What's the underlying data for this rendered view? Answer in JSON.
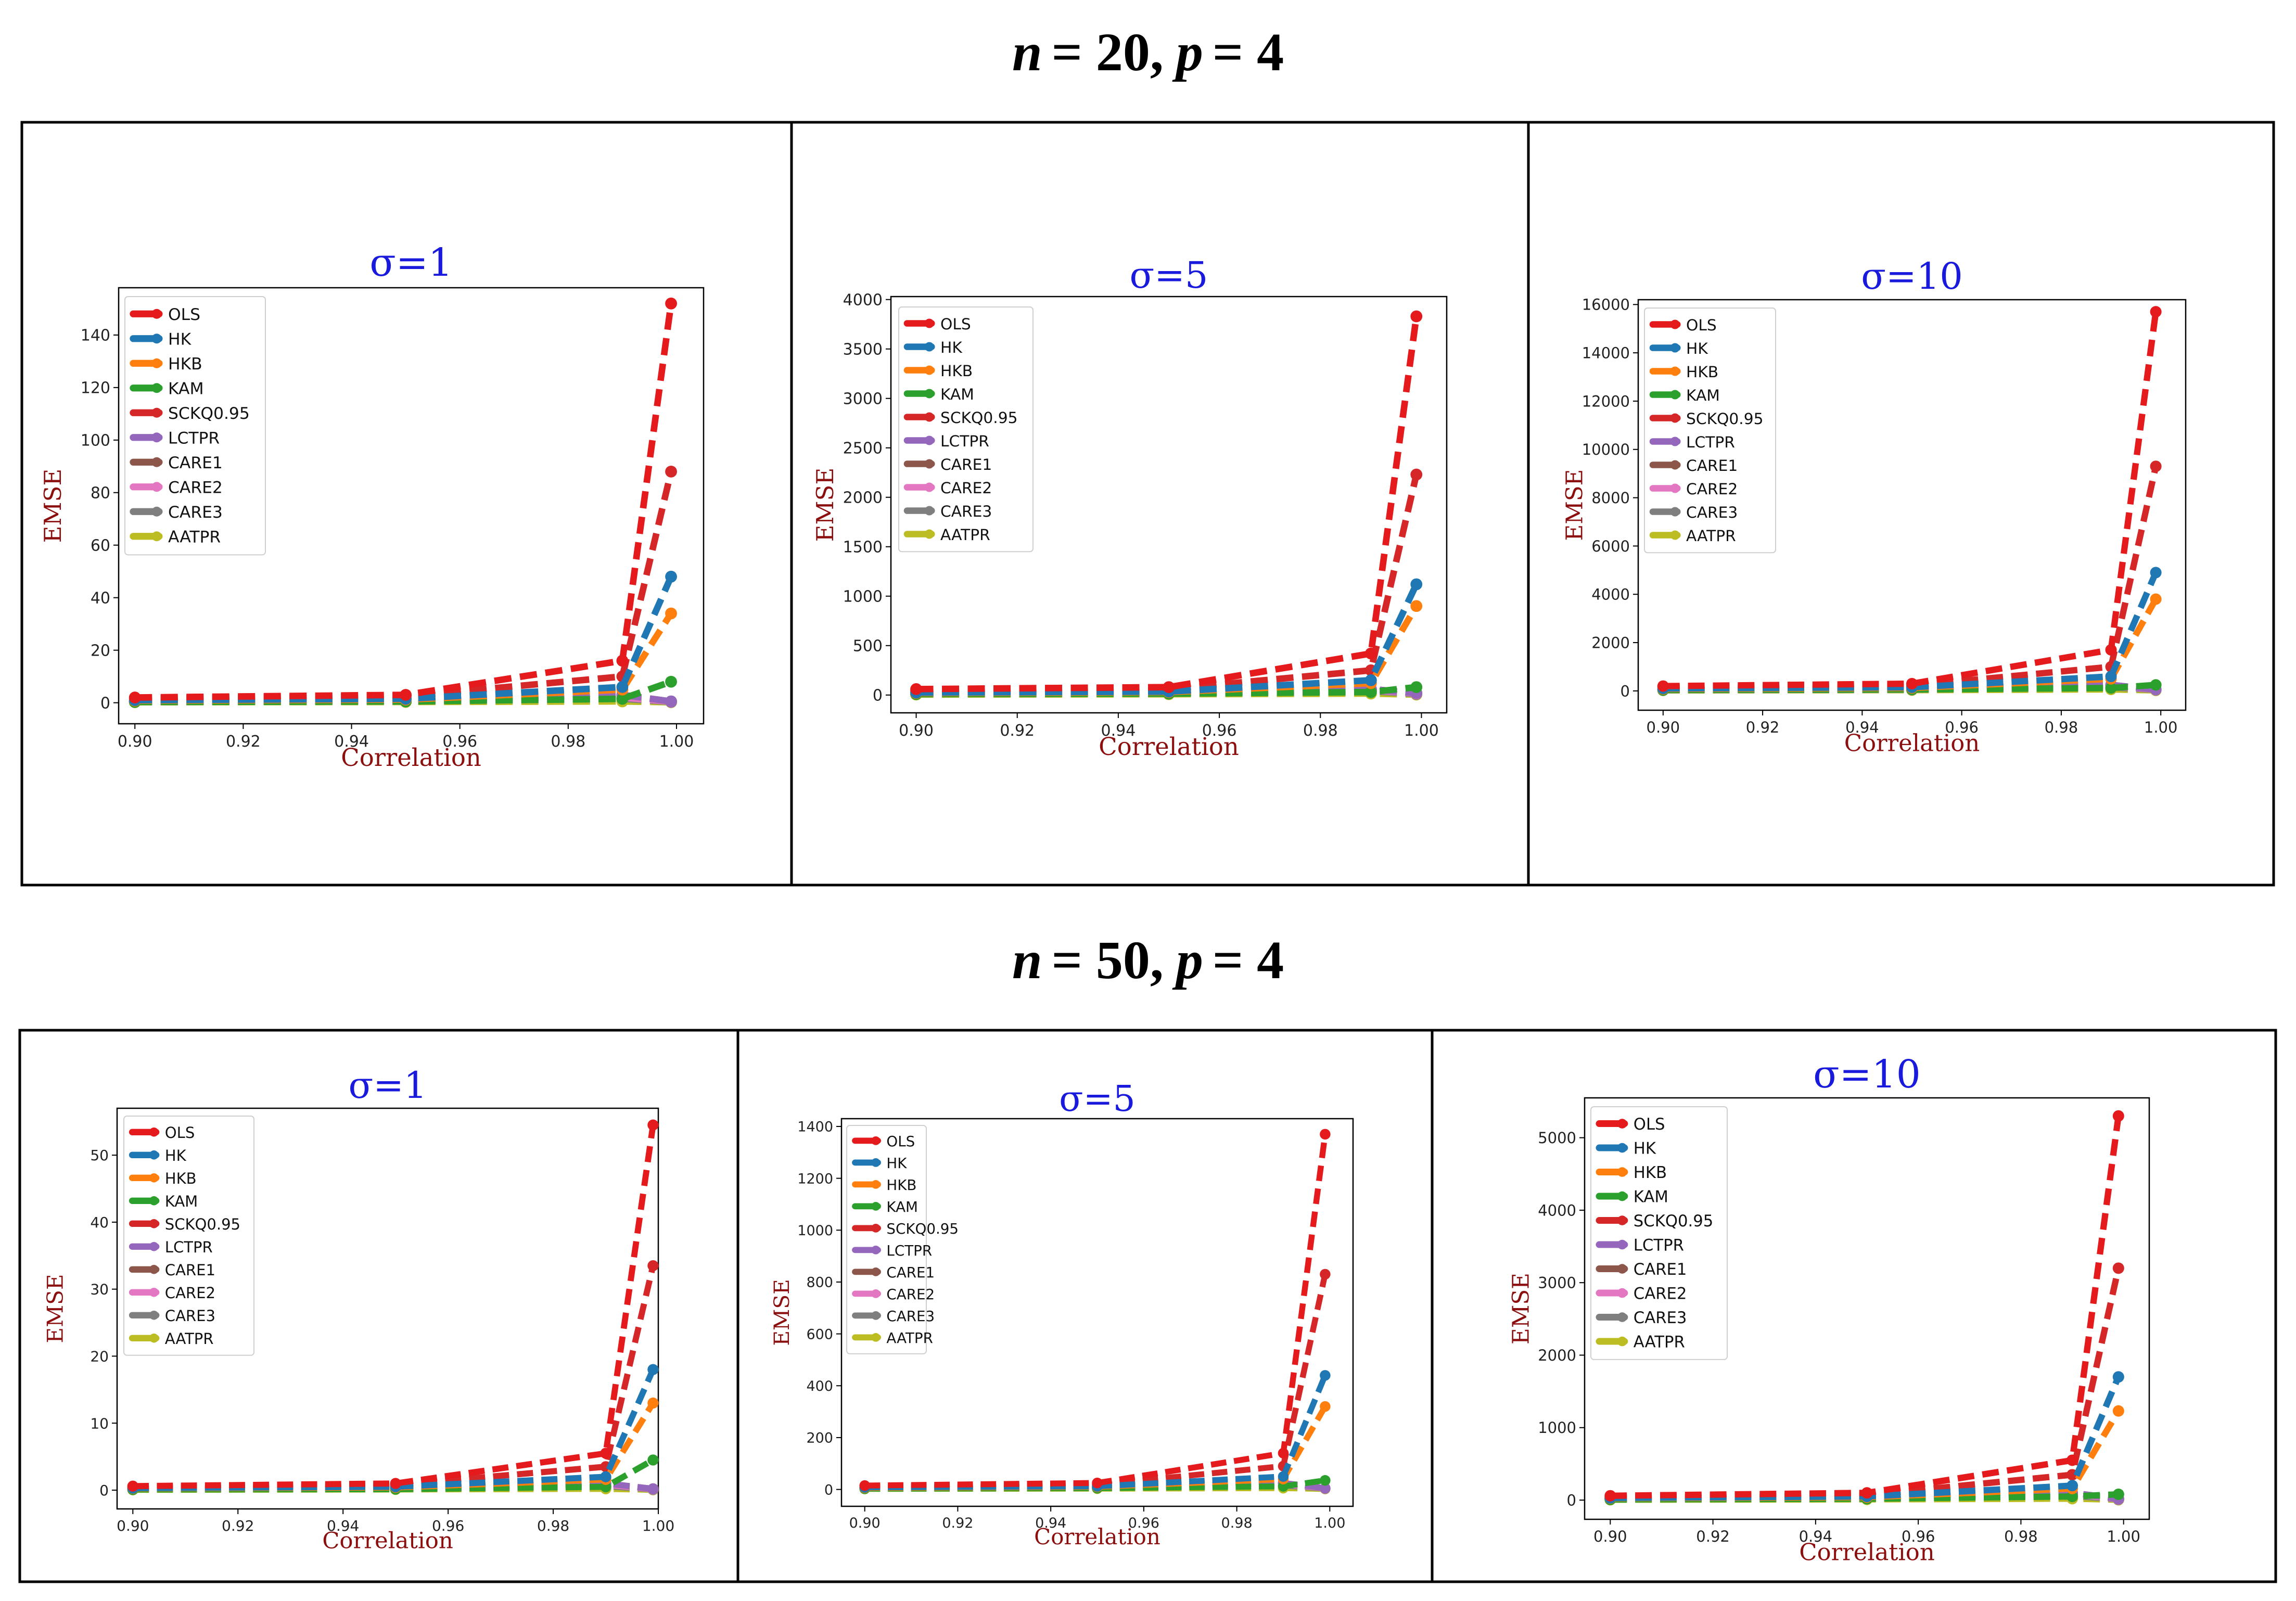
{
  "headings": [
    {
      "n_sym": "n",
      "n_val": "= 20,",
      "p_sym": "p",
      "p_val": "= 4"
    },
    {
      "n_sym": "n",
      "n_val": "= 50,",
      "p_sym": "p",
      "p_val": "= 4"
    }
  ],
  "colors": {
    "title": "#1a1adc",
    "axis_label": "#8b0f0f",
    "frame": "#000000",
    "OLS": "#e41a1c",
    "HK": "#1f77b4",
    "HKB": "#ff7f0e",
    "KAM": "#2ca02c",
    "SCKQ0.95": "#d62728",
    "LCTPR": "#9467bd",
    "CARE1": "#8c564b",
    "CARE2": "#e377c2",
    "CARE3": "#7f7f7f",
    "AATPR": "#bcbd22"
  },
  "legend": [
    "OLS",
    "HK",
    "HKB",
    "KAM",
    "SCKQ0.95",
    "LCTPR",
    "CARE1",
    "CARE2",
    "CARE3",
    "AATPR"
  ],
  "chart_data": [
    {
      "type": "line",
      "title": "σ=1",
      "xlabel": "Correlation",
      "ylabel": "EMSE",
      "x": [
        0.9,
        0.95,
        0.99,
        0.999
      ],
      "xticks": [
        "0.90",
        "0.92",
        "0.94",
        "0.96",
        "0.98",
        "1.00"
      ],
      "xlim": [
        0.897,
        1.005
      ],
      "ylim": [
        -8,
        158
      ],
      "yticks": [
        "0",
        "20",
        "40",
        "60",
        "80",
        "100",
        "120",
        "140"
      ],
      "series": [
        {
          "name": "OLS",
          "values": [
            2,
            3,
            16,
            152
          ]
        },
        {
          "name": "HK",
          "values": [
            1,
            1.5,
            6,
            48
          ]
        },
        {
          "name": "HKB",
          "values": [
            0.8,
            1.2,
            5,
            34
          ]
        },
        {
          "name": "KAM",
          "values": [
            0.3,
            0.5,
            1.5,
            8
          ]
        },
        {
          "name": "SCKQ0.95",
          "values": [
            1.5,
            2.5,
            10,
            88
          ]
        },
        {
          "name": "LCTPR",
          "values": [
            0.5,
            0.8,
            3,
            0.5
          ]
        },
        {
          "name": "CARE1",
          "values": [
            0.5,
            0.8,
            3,
            0.5
          ]
        },
        {
          "name": "CARE2",
          "values": [
            0.4,
            0.6,
            2,
            0.4
          ]
        },
        {
          "name": "CARE3",
          "values": [
            0.3,
            0.5,
            1.5,
            0.3
          ]
        },
        {
          "name": "AATPR",
          "values": [
            0.2,
            0.3,
            0.5,
            0.2
          ]
        }
      ]
    },
    {
      "type": "line",
      "title": "σ=5",
      "xlabel": "Correlation",
      "ylabel": "EMSE",
      "x": [
        0.9,
        0.95,
        0.99,
        0.999
      ],
      "xticks": [
        "0.90",
        "0.92",
        "0.94",
        "0.96",
        "0.98",
        "1.00"
      ],
      "xlim": [
        0.895,
        1.005
      ],
      "ylim": [
        -180,
        4030
      ],
      "yticks": [
        "0",
        "500",
        "1000",
        "1500",
        "2000",
        "2500",
        "3000",
        "3500",
        "4000"
      ],
      "series": [
        {
          "name": "OLS",
          "values": [
            60,
            80,
            420,
            3830
          ]
        },
        {
          "name": "HK",
          "values": [
            25,
            35,
            150,
            1120
          ]
        },
        {
          "name": "HKB",
          "values": [
            20,
            30,
            120,
            900
          ]
        },
        {
          "name": "KAM",
          "values": [
            10,
            15,
            30,
            80
          ]
        },
        {
          "name": "SCKQ0.95",
          "values": [
            40,
            60,
            250,
            2230
          ]
        },
        {
          "name": "LCTPR",
          "values": [
            15,
            20,
            60,
            20
          ]
        },
        {
          "name": "CARE1",
          "values": [
            15,
            20,
            60,
            20
          ]
        },
        {
          "name": "CARE2",
          "values": [
            12,
            18,
            50,
            15
          ]
        },
        {
          "name": "CARE3",
          "values": [
            10,
            15,
            40,
            10
          ]
        },
        {
          "name": "AATPR",
          "values": [
            5,
            8,
            15,
            5
          ]
        }
      ]
    },
    {
      "type": "line",
      "title": "σ=10",
      "xlabel": "Correlation",
      "ylabel": "EMSE",
      "x": [
        0.9,
        0.95,
        0.99,
        0.999
      ],
      "xticks": [
        "0.90",
        "0.92",
        "0.94",
        "0.96",
        "0.98",
        "1.00"
      ],
      "xlim": [
        0.895,
        1.005
      ],
      "ylim": [
        -800,
        16200
      ],
      "yticks": [
        "0",
        "2000",
        "4000",
        "6000",
        "8000",
        "10000",
        "12000",
        "14000",
        "16000"
      ],
      "series": [
        {
          "name": "OLS",
          "values": [
            200,
            300,
            1700,
            15700
          ]
        },
        {
          "name": "HK",
          "values": [
            100,
            150,
            600,
            4900
          ]
        },
        {
          "name": "HKB",
          "values": [
            80,
            120,
            500,
            3800
          ]
        },
        {
          "name": "KAM",
          "values": [
            40,
            60,
            120,
            250
          ]
        },
        {
          "name": "SCKQ0.95",
          "values": [
            150,
            220,
            1000,
            9300
          ]
        },
        {
          "name": "LCTPR",
          "values": [
            50,
            80,
            250,
            60
          ]
        },
        {
          "name": "CARE1",
          "values": [
            50,
            80,
            250,
            60
          ]
        },
        {
          "name": "CARE2",
          "values": [
            40,
            60,
            200,
            50
          ]
        },
        {
          "name": "CARE3",
          "values": [
            30,
            50,
            150,
            40
          ]
        },
        {
          "name": "AATPR",
          "values": [
            20,
            30,
            60,
            20
          ]
        }
      ]
    },
    {
      "type": "line",
      "title": "σ=1",
      "xlabel": "Correlation",
      "ylabel": "EMSE",
      "x": [
        0.9,
        0.95,
        0.99,
        0.999
      ],
      "xticks": [
        "0.90",
        "0.92",
        "0.94",
        "0.96",
        "0.98",
        "1.00"
      ],
      "xlim": [
        0.897,
        1.0
      ],
      "ylim": [
        -2.8,
        57
      ],
      "yticks": [
        "0",
        "10",
        "20",
        "30",
        "40",
        "50"
      ],
      "series": [
        {
          "name": "OLS",
          "values": [
            0.6,
            1.0,
            5.5,
            54.5
          ]
        },
        {
          "name": "HK",
          "values": [
            0.3,
            0.5,
            2.0,
            18
          ]
        },
        {
          "name": "HKB",
          "values": [
            0.25,
            0.4,
            1.6,
            13
          ]
        },
        {
          "name": "KAM",
          "values": [
            0.1,
            0.15,
            0.5,
            4.5
          ]
        },
        {
          "name": "SCKQ0.95",
          "values": [
            0.4,
            0.8,
            3.5,
            33.5
          ]
        },
        {
          "name": "LCTPR",
          "values": [
            0.2,
            0.3,
            1.0,
            0.2
          ]
        },
        {
          "name": "CARE1",
          "values": [
            0.2,
            0.3,
            1.0,
            0.2
          ]
        },
        {
          "name": "CARE2",
          "values": [
            0.15,
            0.25,
            0.8,
            0.15
          ]
        },
        {
          "name": "CARE3",
          "values": [
            0.1,
            0.2,
            0.6,
            0.1
          ]
        },
        {
          "name": "AATPR",
          "values": [
            0.05,
            0.1,
            0.2,
            0.05
          ]
        }
      ]
    },
    {
      "type": "line",
      "title": "σ=5",
      "xlabel": "Correlation",
      "ylabel": "EMSE",
      "x": [
        0.9,
        0.95,
        0.99,
        0.999
      ],
      "xticks": [
        "0.90",
        "0.92",
        "0.94",
        "0.96",
        "0.98",
        "1.00"
      ],
      "xlim": [
        0.895,
        1.005
      ],
      "ylim": [
        -65,
        1430
      ],
      "yticks": [
        "0",
        "200",
        "400",
        "600",
        "800",
        "1000",
        "1200",
        "1400"
      ],
      "series": [
        {
          "name": "OLS",
          "values": [
            15,
            25,
            140,
            1370
          ]
        },
        {
          "name": "HK",
          "values": [
            8,
            12,
            50,
            440
          ]
        },
        {
          "name": "HKB",
          "values": [
            6,
            10,
            40,
            320
          ]
        },
        {
          "name": "KAM",
          "values": [
            3,
            5,
            12,
            35
          ]
        },
        {
          "name": "SCKQ0.95",
          "values": [
            10,
            18,
            90,
            830
          ]
        },
        {
          "name": "LCTPR",
          "values": [
            5,
            8,
            25,
            5
          ]
        },
        {
          "name": "CARE1",
          "values": [
            5,
            8,
            25,
            5
          ]
        },
        {
          "name": "CARE2",
          "values": [
            4,
            6,
            20,
            4
          ]
        },
        {
          "name": "CARE3",
          "values": [
            3,
            5,
            15,
            3
          ]
        },
        {
          "name": "AATPR",
          "values": [
            2,
            3,
            5,
            2
          ]
        }
      ]
    },
    {
      "type": "line",
      "title": "σ=10",
      "xlabel": "Correlation",
      "ylabel": "EMSE",
      "x": [
        0.9,
        0.95,
        0.99,
        0.999
      ],
      "xticks": [
        "0.90",
        "0.92",
        "0.94",
        "0.96",
        "0.98",
        "1.00"
      ],
      "xlim": [
        0.895,
        1.005
      ],
      "ylim": [
        -265,
        5550
      ],
      "yticks": [
        "0",
        "1000",
        "2000",
        "3000",
        "4000",
        "5000"
      ],
      "series": [
        {
          "name": "OLS",
          "values": [
            60,
            100,
            550,
            5300
          ]
        },
        {
          "name": "HK",
          "values": [
            30,
            50,
            200,
            1700
          ]
        },
        {
          "name": "HKB",
          "values": [
            25,
            40,
            160,
            1230
          ]
        },
        {
          "name": "KAM",
          "values": [
            10,
            20,
            50,
            80
          ]
        },
        {
          "name": "SCKQ0.95",
          "values": [
            40,
            70,
            350,
            3200
          ]
        },
        {
          "name": "LCTPR",
          "values": [
            20,
            30,
            100,
            20
          ]
        },
        {
          "name": "CARE1",
          "values": [
            20,
            30,
            100,
            20
          ]
        },
        {
          "name": "CARE2",
          "values": [
            15,
            25,
            80,
            15
          ]
        },
        {
          "name": "CARE3",
          "values": [
            10,
            20,
            60,
            10
          ]
        },
        {
          "name": "AATPR",
          "values": [
            5,
            10,
            20,
            5
          ]
        }
      ]
    }
  ]
}
